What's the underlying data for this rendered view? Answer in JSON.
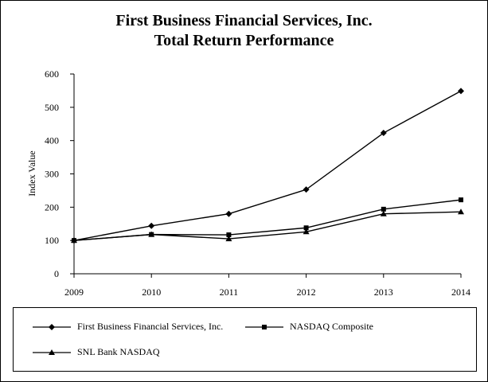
{
  "title_line1": "First Business Financial Services, Inc.",
  "title_line2": "Total Return Performance",
  "chart_data": {
    "type": "line",
    "title": "First Business Financial Services, Inc. Total Return Performance",
    "xlabel": "",
    "ylabel": "Index Value",
    "categories": [
      "2009",
      "2010",
      "2011",
      "2012",
      "2013",
      "2014"
    ],
    "ylim": [
      0,
      600
    ],
    "yticks": [
      0,
      100,
      200,
      300,
      400,
      500,
      600
    ],
    "grid": false,
    "legend_position": "bottom",
    "series": [
      {
        "name": "First Business Financial Services, Inc.",
        "marker": "diamond",
        "values": [
          100,
          144,
          180,
          253,
          423,
          549
        ]
      },
      {
        "name": "NASDAQ Composite",
        "marker": "square",
        "values": [
          100,
          118,
          117,
          138,
          194,
          222
        ]
      },
      {
        "name": "SNL Bank NASDAQ",
        "marker": "triangle",
        "values": [
          100,
          118,
          105,
          126,
          180,
          186
        ]
      }
    ],
    "line_color": "#000000"
  }
}
